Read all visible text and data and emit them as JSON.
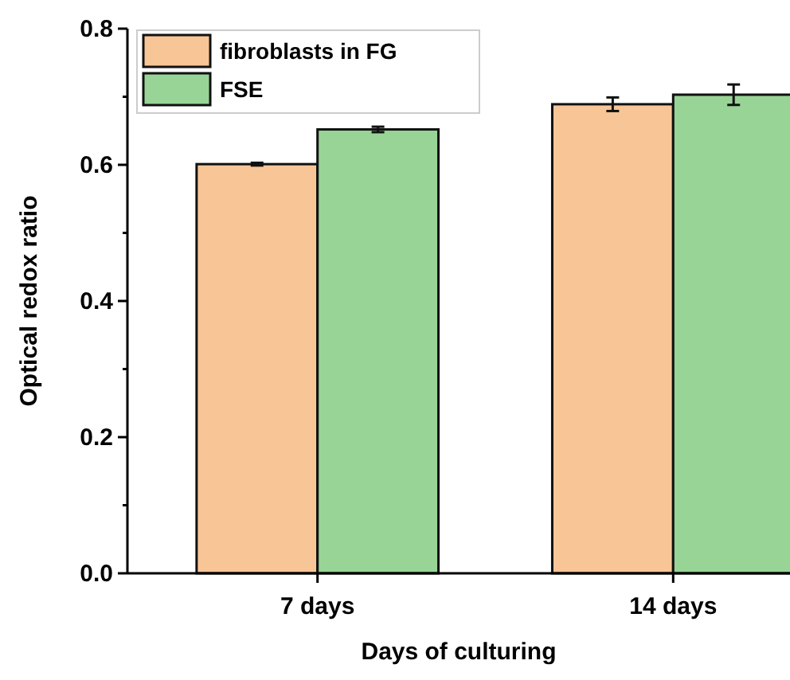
{
  "chart_data": {
    "type": "bar",
    "xlabel": "Days of culturing",
    "ylabel": "Optical redox ratio",
    "categories": [
      "7 days",
      "14 days"
    ],
    "series": [
      {
        "name": "fibroblasts in FG",
        "color": "#f8c596",
        "values": [
          0.601,
          0.689
        ],
        "errors": [
          0.002,
          0.01
        ]
      },
      {
        "name": "FSE",
        "color": "#98d496",
        "values": [
          0.652,
          0.703
        ],
        "errors": [
          0.004,
          0.015
        ]
      }
    ],
    "ylim": [
      0,
      0.8
    ],
    "yticks": [
      {
        "value": 0,
        "label": "0.0"
      },
      {
        "value": 0.1,
        "label": null
      },
      0.2,
      {
        "value": 0.3,
        "label": null
      },
      0.4,
      {
        "value": 0.5,
        "label": null
      },
      0.6,
      {
        "value": 0.7,
        "label": null
      },
      0.8
    ],
    "legend": "top left"
  }
}
